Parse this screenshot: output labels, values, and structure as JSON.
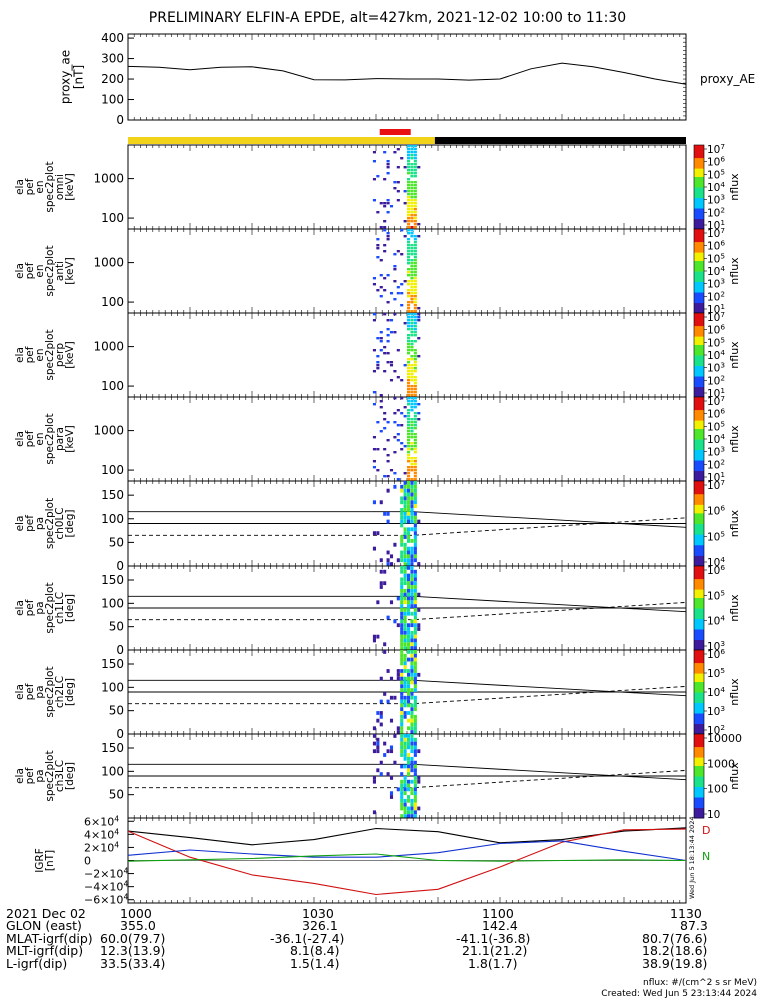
{
  "title": "PRELIMINARY ELFIN-A EPDE, alt=427km, 2021-12-02 10:00 to 11:30",
  "chart_data": {
    "type": "multi-panel-spectrogram",
    "time_range": [
      "10:00",
      "11:30"
    ],
    "x_ticks": [
      "1000",
      "1030",
      "1100",
      "1130"
    ],
    "panels": [
      {
        "id": "proxy_ae",
        "type": "line",
        "ylabel": [
          "proxy_ae",
          "[nT]"
        ],
        "yticks": [
          0,
          100,
          200,
          300,
          400
        ],
        "ylim": [
          0,
          420
        ],
        "legend": "proxy_AE",
        "color": "#000000",
        "x": [
          0,
          5,
          10,
          15,
          20,
          25,
          30,
          35,
          40,
          45,
          50,
          55,
          60,
          65,
          70,
          75,
          80,
          85,
          90
        ],
        "y": [
          262,
          258,
          245,
          258,
          260,
          240,
          197,
          196,
          202,
          200,
          200,
          195,
          200,
          250,
          278,
          260,
          232,
          200,
          175
        ]
      },
      {
        "id": "omni",
        "type": "spectrogram",
        "ylabel": [
          "ela",
          "pef",
          "en",
          "spec2plot",
          "omni",
          "[keV]"
        ],
        "yticks": [
          "100",
          "1000"
        ],
        "cbar_label": "nflux",
        "cbar_ticks": [
          "101",
          "102",
          "103",
          "104",
          "105",
          "106",
          "107"
        ]
      },
      {
        "id": "anti",
        "type": "spectrogram",
        "ylabel": [
          "ela",
          "pef",
          "en",
          "spec2plot",
          "anti",
          "[keV]"
        ],
        "yticks": [
          "100",
          "1000"
        ],
        "cbar_label": "nflux",
        "cbar_ticks": [
          "101",
          "102",
          "103",
          "104",
          "105",
          "106",
          "107"
        ]
      },
      {
        "id": "perp",
        "type": "spectrogram",
        "ylabel": [
          "ela",
          "pef",
          "en",
          "spec2plot",
          "perp",
          "[keV]"
        ],
        "yticks": [
          "100",
          "1000"
        ],
        "cbar_label": "nflux",
        "cbar_ticks": [
          "101",
          "102",
          "103",
          "104",
          "105",
          "106",
          "107"
        ]
      },
      {
        "id": "para",
        "type": "spectrogram",
        "ylabel": [
          "ela",
          "pef",
          "en",
          "spec2plot",
          "para",
          "[keV]"
        ],
        "yticks": [
          "100",
          "1000"
        ],
        "cbar_label": "nflux",
        "cbar_ticks": [
          "101",
          "102",
          "103",
          "104",
          "105",
          "106",
          "107"
        ]
      },
      {
        "id": "ch0LC",
        "type": "spectrogram",
        "ylabel": [
          "ela",
          "pef",
          "pa",
          "spec2plot",
          "ch0LC",
          "[deg]"
        ],
        "yticks": [
          "0",
          "50",
          "100",
          "150"
        ],
        "cbar_label": "nflux",
        "cbar_ticks": [
          "104",
          "105",
          "106",
          "107"
        ]
      },
      {
        "id": "ch1LC",
        "type": "spectrogram",
        "ylabel": [
          "ela",
          "pef",
          "pa",
          "spec2plot",
          "ch1LC",
          "[deg]"
        ],
        "yticks": [
          "0",
          "50",
          "100",
          "150"
        ],
        "cbar_label": "nflux",
        "cbar_ticks": [
          "103",
          "104",
          "105",
          "106"
        ]
      },
      {
        "id": "ch2LC",
        "type": "spectrogram",
        "ylabel": [
          "ela",
          "pef",
          "pa",
          "spec2plot",
          "ch2LC",
          "[deg]"
        ],
        "yticks": [
          "0",
          "50",
          "100",
          "150"
        ],
        "cbar_label": "nflux",
        "cbar_ticks": [
          "102",
          "103",
          "104",
          "105",
          "106"
        ]
      },
      {
        "id": "ch3LC",
        "type": "spectrogram",
        "ylabel": [
          "ela",
          "pef",
          "pa",
          "spec2plot",
          "ch3LC",
          "[deg]"
        ],
        "yticks": [
          "50",
          "100",
          "150"
        ],
        "cbar_label": "nflux",
        "cbar_ticks": [
          "10",
          "100",
          "1000",
          "10000"
        ]
      },
      {
        "id": "igrf",
        "type": "line",
        "ylabel": [
          "IGRF",
          "[nT]"
        ],
        "yticks": [
          "−6×104",
          "−4×104",
          "−2×104",
          "0",
          "2×104",
          "4×104",
          "6×104"
        ],
        "legend": [
          "D",
          "N"
        ],
        "series": [
          {
            "name": "",
            "color": "#000000",
            "x": [
              0,
              10,
              20,
              30,
              40,
              50,
              60,
              70,
              80,
              90
            ],
            "y": [
              45000,
              35000,
              24000,
              32000,
              49000,
              44000,
              27000,
              32000,
              45000,
              50000
            ]
          },
          {
            "name": "",
            "color": "#d01010",
            "x": [
              0,
              10,
              20,
              30,
              40,
              50,
              60,
              70,
              80,
              90
            ],
            "y": [
              45000,
              5000,
              -22000,
              -35000,
              -52000,
              -44000,
              -10000,
              28000,
              47000,
              48000
            ]
          },
          {
            "name": "",
            "color": "#1030d0",
            "x": [
              0,
              10,
              20,
              30,
              40,
              50,
              60,
              70,
              80,
              90
            ],
            "y": [
              8000,
              16000,
              10000,
              5000,
              5000,
              12000,
              26000,
              30000,
              14000,
              0
            ]
          },
          {
            "name": "",
            "color": "#10a010",
            "x": [
              0,
              10,
              20,
              30,
              40,
              50,
              60,
              70,
              80,
              90
            ],
            "y": [
              -1000,
              1000,
              3000,
              7000,
              10000,
              0,
              -1000,
              0,
              1000,
              0
            ]
          }
        ]
      }
    ],
    "status_bar": {
      "yellow_end_min": 49.5,
      "black_from_min": 49.5,
      "red_from_min": 40.6,
      "red_to_min": 45.6
    }
  },
  "orbit": {
    "rows": [
      {
        "label": "2021 Dec 02",
        "values": [
          "1000",
          "1030",
          "1100",
          "1130"
        ]
      },
      {
        "label": "GLON (east)",
        "values": [
          "355.0",
          "326.1",
          "142.4",
          "87.3"
        ]
      },
      {
        "label": "MLAT-igrf(dip)",
        "values": [
          "60.0(79.7)",
          "-36.1(-27.4)",
          "-41.1(-36.8)",
          "80.7(76.6)"
        ]
      },
      {
        "label": "MLT-igrf(dip)",
        "values": [
          "12.3(13.9)",
          "8.1(8.4)",
          "21.1(21.2)",
          "18.2(18.6)"
        ]
      },
      {
        "label": "L-igrf(dip)",
        "values": [
          "33.5(33.4)",
          "1.5(1.4)",
          "1.8(1.7)",
          "38.9(19.8)"
        ]
      }
    ]
  },
  "footer": {
    "units": "nflux: #/(cm^2 s sr MeV)",
    "created": "Created: Wed Jun  5 23:13:44 2024",
    "side_stamp": "Wed Jun  5 18:13:44 2024"
  }
}
